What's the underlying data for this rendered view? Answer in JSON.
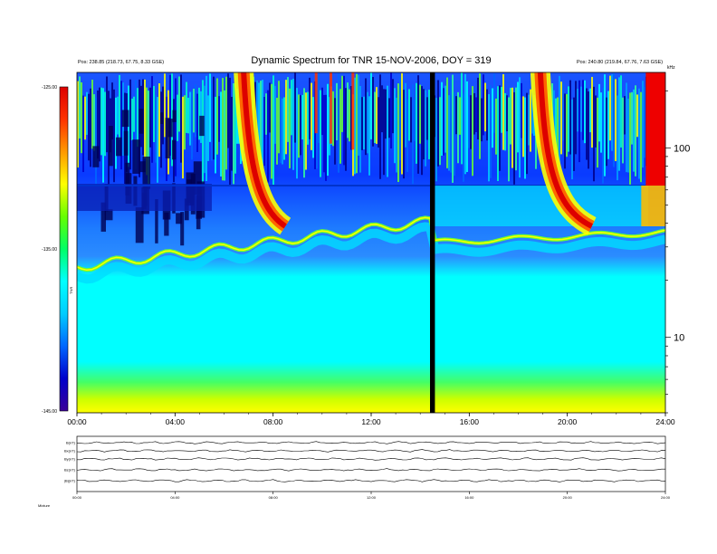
{
  "header": {
    "title": "Dynamic Spectrum for TNR 15-NOV-2006, DOY = 319",
    "top_left_line1": "",
    "top_left_line2": "",
    "top_left_line3": "Pos:  238.85 (218.73, 67.75, 8.33 GSE)",
    "top_right_line1": "",
    "top_right_line2": "",
    "top_right_line3": "Pos:  240.80 (219.84, 67.76, 7.63 GSE)",
    "mid_small_label": "",
    "right_unit_label": "kHz"
  },
  "colorbar": {
    "tick_labels": [
      "-125.00",
      "-135.00",
      "-145.00"
    ],
    "axis_label": "TNR",
    "stops": [
      "#3a0099",
      "#0000cc",
      "#0066ff",
      "#00ccff",
      "#00ffff",
      "#00ff66",
      "#66ff00",
      "#ffff00",
      "#ff9900",
      "#ff3300",
      "#dd0000"
    ]
  },
  "chart_data": [
    {
      "type": "heatmap",
      "title": "Dynamic Spectrum for TNR 15-NOV-2006, DOY = 319",
      "x_tick_labels": [
        "00:00",
        "04:00",
        "08:00",
        "12:00",
        "16:00",
        "20:00",
        "24:00"
      ],
      "x_hours": [
        0,
        4,
        8,
        12,
        16,
        20,
        24
      ],
      "xlim": [
        0,
        24
      ],
      "y_scale": "log",
      "y_unit": "kHz",
      "y_tick_labels": [
        "100",
        "10"
      ],
      "y_tick_values": [
        100,
        10
      ],
      "ylim": [
        4,
        250
      ],
      "z_unit": "TNR",
      "z_range": [
        -145,
        -125
      ],
      "z_tick_labels": [
        "-125.00",
        "-135.00",
        "-145.00"
      ],
      "data_gap_hours": [
        14.4,
        14.6
      ],
      "emission_bands": [
        {
          "name": "low-frequency floor",
          "freq_khz": [
            4,
            6
          ],
          "intensity_db": -139
        },
        {
          "name": "plasma line",
          "freq_khz": [
            28,
            40
          ],
          "intensity_db": -137
        },
        {
          "name": "burst 1",
          "start_hour": 6.8,
          "end_hour": 8.5,
          "intensity_db": -126
        },
        {
          "name": "burst 2",
          "start_hour": 18.9,
          "end_hour": 21.0,
          "intensity_db": -126
        },
        {
          "name": "burst 3",
          "start_hour": 23.2,
          "end_hour": 24.0,
          "intensity_db": -125
        }
      ]
    },
    {
      "type": "line",
      "panel": "field strip",
      "series": [
        {
          "name": "B(nT)"
        },
        {
          "name": "Bx(nT)"
        },
        {
          "name": "By(nT)"
        },
        {
          "name": "Bz(nT)"
        },
        {
          "name": "|B|(nT)"
        }
      ],
      "x_tick_labels": [
        "00:00",
        "04:00",
        "08:00",
        "12:00",
        "16:00",
        "20:00",
        "24:00"
      ],
      "xlim": [
        0,
        24
      ],
      "footer_label": "Mixture"
    }
  ]
}
